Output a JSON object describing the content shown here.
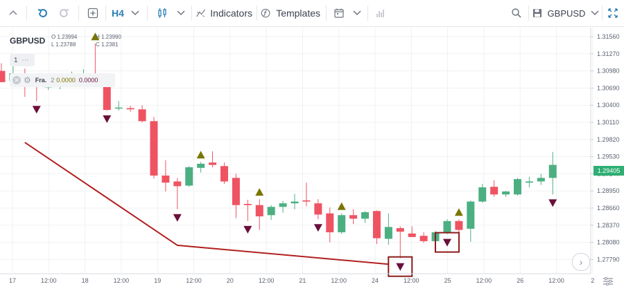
{
  "toolbar": {
    "timeframe": "H4",
    "indicators_label": "Indicators",
    "templates_label": "Templates",
    "symbol": "GBPUSD"
  },
  "legend": {
    "symbol": "GBPUSD",
    "open": "O 1.23994",
    "high": "H 1.23990",
    "low": "L 1.23788",
    "close": "C 1.2381",
    "indicator_count": "1",
    "indicator_name": "Fra.",
    "indicator_param": "2",
    "indicator_value_1": "0.0000",
    "indicator_value_2": "0.0000"
  },
  "price_axis": {
    "labels": [
      "1.31560",
      "1.31270",
      "1.30980",
      "1.30690",
      "1.30400",
      "1.30110",
      "1.29820",
      "1.29530",
      "1.29240",
      "1.28950",
      "1.28660",
      "1.28370",
      "1.28080",
      "1.27790"
    ],
    "current_price": "1.29405"
  },
  "time_axis": {
    "labels": [
      "17",
      "12:00",
      "18",
      "12:00",
      "19",
      "12:00",
      "20",
      "12:00",
      "21",
      "12:00",
      "24",
      "12:00",
      "25",
      "12:00",
      "26",
      "12:00",
      "2"
    ]
  },
  "colors": {
    "bullish": "#4caf82",
    "bearish": "#ef5362",
    "fractal_up": "#7a7600",
    "fractal_down": "#6b0f3a",
    "trendline": "#b21f1f",
    "highlight_box": "#8b1a1a",
    "current_price_tag": "#2eae72",
    "accent": "#2a7fb5"
  },
  "chart_data": {
    "type": "candlestick",
    "symbol": "GBPUSD",
    "timeframe": "H4",
    "y_range": [
      1.2775,
      1.317
    ],
    "candles": [
      {
        "o": 1.3099,
        "h": 1.3112,
        "l": 1.308,
        "c": 1.308
      },
      {
        "o": 1.3082,
        "h": 1.311,
        "l": 1.3075,
        "c": 1.3095
      },
      {
        "o": 1.309,
        "h": 1.3103,
        "l": 1.3055,
        "c": 1.3072
      },
      {
        "o": 1.3075,
        "h": 1.309,
        "l": 1.3048,
        "c": 1.3072
      },
      {
        "o": 1.3073,
        "h": 1.3095,
        "l": 1.3067,
        "c": 1.3073
      },
      {
        "o": 1.3075,
        "h": 1.3088,
        "l": 1.3068,
        "c": 1.3085
      },
      {
        "o": 1.308,
        "h": 1.3098,
        "l": 1.3074,
        "c": 1.3088
      },
      {
        "o": 1.3088,
        "h": 1.3102,
        "l": 1.3082,
        "c": 1.3094
      },
      {
        "o": 1.3094,
        "h": 1.3145,
        "l": 1.308,
        "c": 1.3082
      },
      {
        "o": 1.3085,
        "h": 1.3088,
        "l": 1.3032,
        "c": 1.3033
      },
      {
        "o": 1.3036,
        "h": 1.3048,
        "l": 1.3032,
        "c": 1.3037
      },
      {
        "o": 1.3036,
        "h": 1.304,
        "l": 1.303,
        "c": 1.3034
      },
      {
        "o": 1.3034,
        "h": 1.3041,
        "l": 1.3012,
        "c": 1.3014
      },
      {
        "o": 1.3014,
        "h": 1.3021,
        "l": 1.2917,
        "c": 1.2922
      },
      {
        "o": 1.2922,
        "h": 1.2948,
        "l": 1.2895,
        "c": 1.291
      },
      {
        "o": 1.2912,
        "h": 1.2918,
        "l": 1.2865,
        "c": 1.2904
      },
      {
        "o": 1.2905,
        "h": 1.2938,
        "l": 1.2903,
        "c": 1.2936
      },
      {
        "o": 1.2935,
        "h": 1.2945,
        "l": 1.2927,
        "c": 1.2942
      },
      {
        "o": 1.2944,
        "h": 1.2963,
        "l": 1.2936,
        "c": 1.294
      },
      {
        "o": 1.2938,
        "h": 1.2944,
        "l": 1.2908,
        "c": 1.2912
      },
      {
        "o": 1.2918,
        "h": 1.2925,
        "l": 1.285,
        "c": 1.2872
      },
      {
        "o": 1.2874,
        "h": 1.2881,
        "l": 1.2845,
        "c": 1.2872
      },
      {
        "o": 1.2872,
        "h": 1.2882,
        "l": 1.283,
        "c": 1.2853
      },
      {
        "o": 1.2855,
        "h": 1.2872,
        "l": 1.2847,
        "c": 1.2869
      },
      {
        "o": 1.2869,
        "h": 1.2879,
        "l": 1.2859,
        "c": 1.2875
      },
      {
        "o": 1.2875,
        "h": 1.2891,
        "l": 1.2865,
        "c": 1.2878
      },
      {
        "o": 1.288,
        "h": 1.291,
        "l": 1.287,
        "c": 1.2878
      },
      {
        "o": 1.2875,
        "h": 1.2882,
        "l": 1.2848,
        "c": 1.2856
      },
      {
        "o": 1.2858,
        "h": 1.2868,
        "l": 1.2809,
        "c": 1.2826
      },
      {
        "o": 1.2826,
        "h": 1.2858,
        "l": 1.2823,
        "c": 1.2855
      },
      {
        "o": 1.2855,
        "h": 1.2865,
        "l": 1.284,
        "c": 1.2849
      },
      {
        "o": 1.2849,
        "h": 1.2862,
        "l": 1.2842,
        "c": 1.286
      },
      {
        "o": 1.2862,
        "h": 1.2863,
        "l": 1.2806,
        "c": 1.2816
      },
      {
        "o": 1.2815,
        "h": 1.2858,
        "l": 1.2805,
        "c": 1.2835
      },
      {
        "o": 1.2833,
        "h": 1.2836,
        "l": 1.2782,
        "c": 1.2827
      },
      {
        "o": 1.2824,
        "h": 1.2836,
        "l": 1.2818,
        "c": 1.2818
      },
      {
        "o": 1.282,
        "h": 1.2826,
        "l": 1.2808,
        "c": 1.2811
      },
      {
        "o": 1.2811,
        "h": 1.2828,
        "l": 1.2808,
        "c": 1.2826
      },
      {
        "o": 1.2826,
        "h": 1.2848,
        "l": 1.2823,
        "c": 1.2845
      },
      {
        "o": 1.2845,
        "h": 1.2848,
        "l": 1.2814,
        "c": 1.283
      },
      {
        "o": 1.2832,
        "h": 1.288,
        "l": 1.281,
        "c": 1.2878
      },
      {
        "o": 1.2878,
        "h": 1.2908,
        "l": 1.2876,
        "c": 1.2902
      },
      {
        "o": 1.2903,
        "h": 1.2914,
        "l": 1.2886,
        "c": 1.289
      },
      {
        "o": 1.289,
        "h": 1.2896,
        "l": 1.2886,
        "c": 1.2895
      },
      {
        "o": 1.289,
        "h": 1.2918,
        "l": 1.2888,
        "c": 1.2916
      },
      {
        "o": 1.291,
        "h": 1.292,
        "l": 1.2902,
        "c": 1.2912
      },
      {
        "o": 1.2912,
        "h": 1.2925,
        "l": 1.2906,
        "c": 1.2918
      },
      {
        "o": 1.2918,
        "h": 1.2962,
        "l": 1.289,
        "c": 1.294
      }
    ],
    "fractals_up": [
      2,
      8,
      17,
      22,
      29,
      39
    ],
    "fractals_down": [
      3,
      9,
      15,
      21,
      27,
      34,
      38,
      47
    ],
    "highlighted_fractals": [
      34,
      38
    ],
    "trendline": [
      {
        "candle": 2,
        "price": 1.2978
      },
      {
        "candle": 15,
        "price": 1.2804
      },
      {
        "candle": 33,
        "price": 1.2772
      }
    ]
  }
}
